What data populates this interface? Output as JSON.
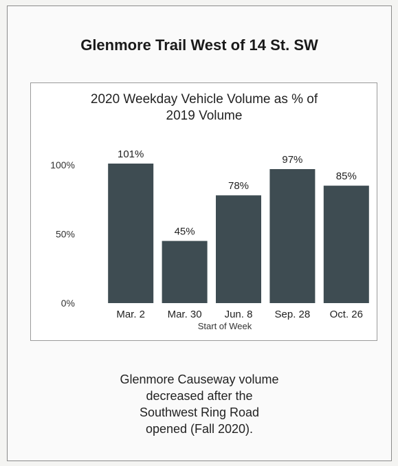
{
  "page": {
    "title": "Glenmore Trail West of 14 St. SW",
    "caption_lines": [
      "Glenmore Causeway volume",
      "decreased after the",
      "Southwest Ring Road",
      "opened (Fall 2020)."
    ]
  },
  "chart_data": {
    "type": "bar",
    "title_lines": [
      "2020 Weekday Vehicle Volume as % of",
      "2019 Volume"
    ],
    "categories": [
      "Mar. 2",
      "Mar. 30",
      "Jun. 8",
      "Sep. 28",
      "Oct. 26"
    ],
    "values": [
      101,
      45,
      78,
      97,
      85
    ],
    "data_labels": [
      "101%",
      "45%",
      "78%",
      "97%",
      "85%"
    ],
    "xlabel": "Start of Week",
    "ylabel": "",
    "ylim": [
      0,
      100
    ],
    "yticks": [
      0,
      50,
      100
    ],
    "ytick_labels": [
      "0%",
      "50%",
      "100%"
    ],
    "bar_color": "#3e4c52",
    "grid": false,
    "legend": "none"
  }
}
